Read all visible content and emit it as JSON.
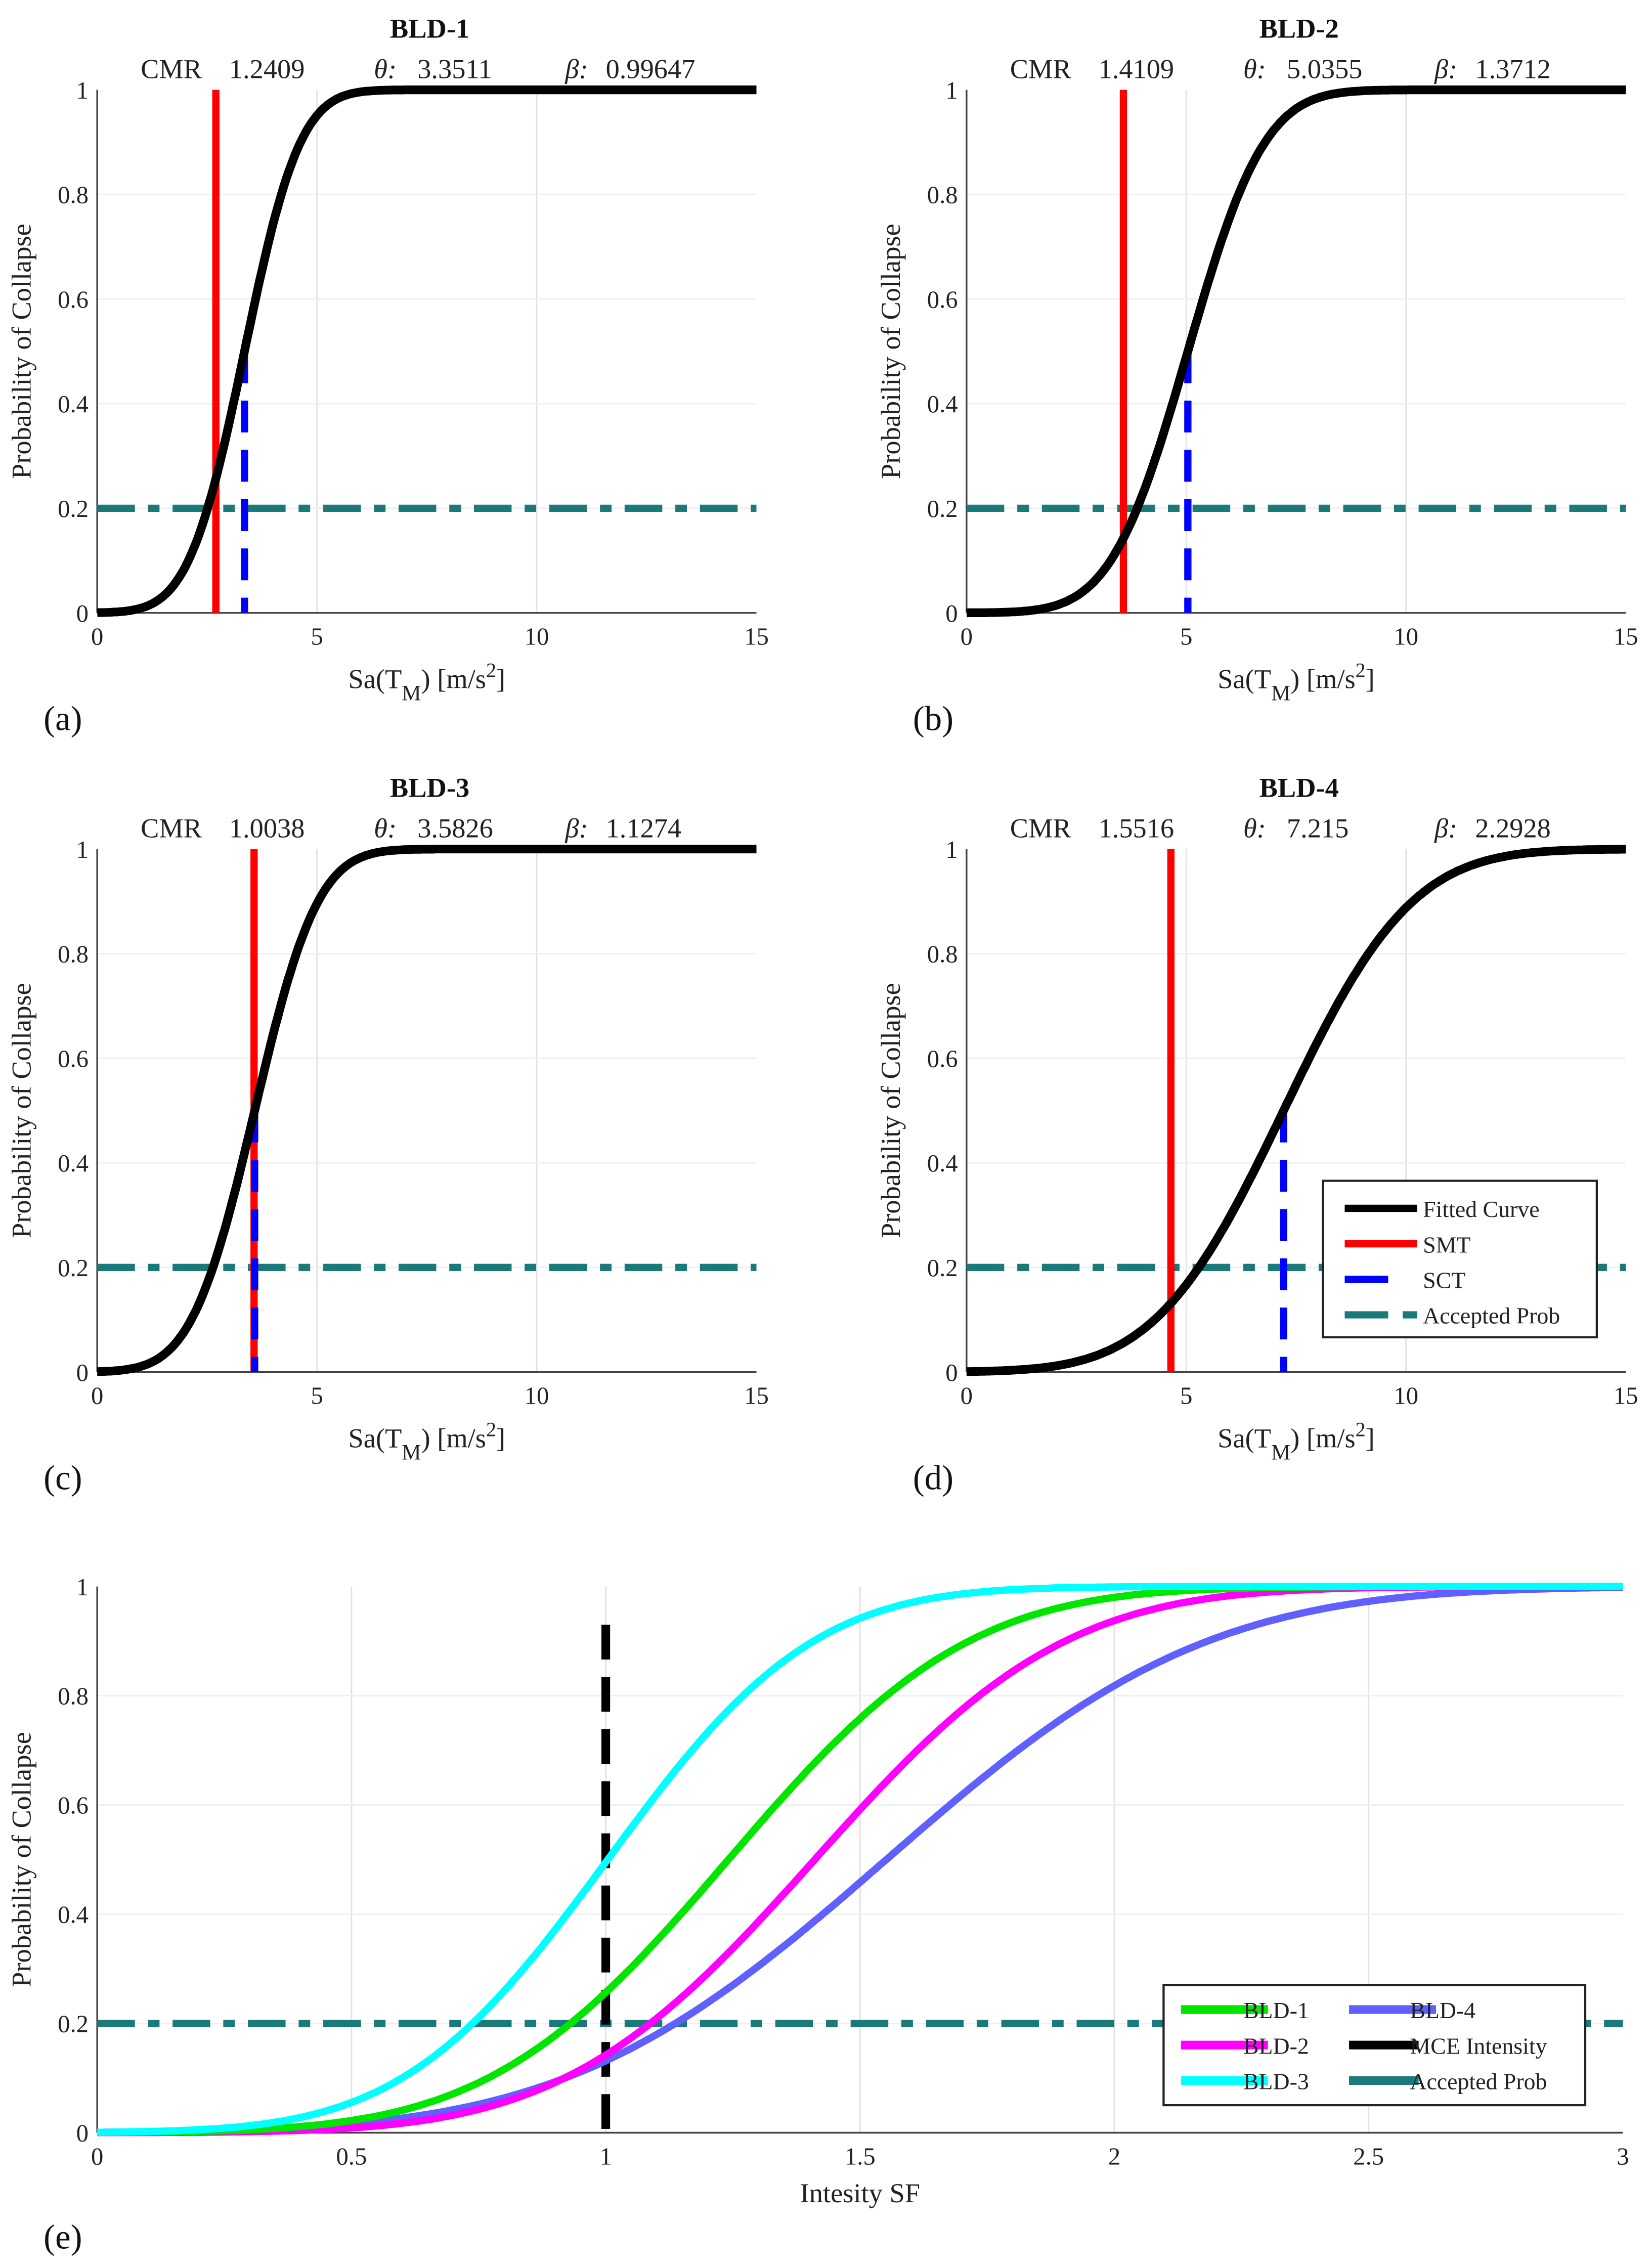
{
  "colors": {
    "fitted": "#000000",
    "smt": "#ff0000",
    "sct": "#0000ff",
    "accepted": "#1a7a7a",
    "bld1": "#00e600",
    "bld2": "#ff00ff",
    "bld3": "#00ffff",
    "bld4": "#6060ff",
    "mce": "#000000"
  },
  "chart_data": [
    {
      "type": "line",
      "panel": "(a)",
      "title": "BLD-1",
      "stats": {
        "cmr_label": "CMR",
        "cmr": "1.2409",
        "theta_label": "θ:",
        "theta": "3.3511",
        "beta_label": "β:",
        "beta": "0.99647"
      },
      "theta": 3.3511,
      "beta": 0.99647,
      "smt": 2.7,
      "sct": 3.3511,
      "accepted_prob": 0.2,
      "xlim": [
        0,
        15
      ],
      "ylim": [
        0,
        1
      ],
      "xticks": [
        "0",
        "5",
        "10",
        "15"
      ],
      "yticks": [
        "0",
        "0.2",
        "0.4",
        "0.6",
        "0.8",
        "1"
      ],
      "xlabel": "Sa(T",
      "xlabel_sub": "M",
      "xlabel_units": ")   [m/s",
      "xlabel_sup": "2",
      "xlabel_end": "]",
      "ylabel": "Probability of Collapse",
      "grid": true
    },
    {
      "type": "line",
      "panel": "(b)",
      "title": "BLD-2",
      "stats": {
        "cmr_label": "CMR",
        "cmr": "1.4109",
        "theta_label": "θ:",
        "theta": "5.0355",
        "beta_label": "β:",
        "beta": "1.3712"
      },
      "theta": 5.0355,
      "beta": 1.3712,
      "smt": 3.569,
      "sct": 5.0355,
      "accepted_prob": 0.2,
      "xlim": [
        0,
        15
      ],
      "ylim": [
        0,
        1
      ],
      "xticks": [
        "0",
        "5",
        "10",
        "15"
      ],
      "yticks": [
        "0",
        "0.2",
        "0.4",
        "0.6",
        "0.8",
        "1"
      ],
      "xlabel": "Sa(T",
      "xlabel_sub": "M",
      "xlabel_units": ")   [m/s",
      "xlabel_sup": "2",
      "xlabel_end": "]",
      "ylabel": "Probability of Collapse",
      "grid": true
    },
    {
      "type": "line",
      "panel": "(c)",
      "title": "BLD-3",
      "stats": {
        "cmr_label": "CMR",
        "cmr": "1.0038",
        "theta_label": "θ:",
        "theta": "3.5826",
        "beta_label": "β:",
        "beta": "1.1274"
      },
      "theta": 3.5826,
      "beta": 1.1274,
      "smt": 3.569,
      "sct": 3.5826,
      "accepted_prob": 0.2,
      "xlim": [
        0,
        15
      ],
      "ylim": [
        0,
        1
      ],
      "xticks": [
        "0",
        "5",
        "10",
        "15"
      ],
      "yticks": [
        "0",
        "0.2",
        "0.4",
        "0.6",
        "0.8",
        "1"
      ],
      "xlabel": "Sa(T",
      "xlabel_sub": "M",
      "xlabel_units": ")   [m/s",
      "xlabel_sup": "2",
      "xlabel_end": "]",
      "ylabel": "Probability of Collapse",
      "grid": true
    },
    {
      "type": "line",
      "panel": "(d)",
      "title": "BLD-4",
      "stats": {
        "cmr_label": "CMR",
        "cmr": "1.5516",
        "theta_label": "θ:",
        "theta": "7.215",
        "beta_label": "β:",
        "beta": "2.2928"
      },
      "theta": 7.215,
      "beta": 2.2928,
      "smt": 4.65,
      "sct": 7.215,
      "accepted_prob": 0.2,
      "xlim": [
        0,
        15
      ],
      "ylim": [
        0,
        1
      ],
      "xticks": [
        "0",
        "5",
        "10",
        "15"
      ],
      "yticks": [
        "0",
        "0.2",
        "0.4",
        "0.6",
        "0.8",
        "1"
      ],
      "xlabel": "Sa(T",
      "xlabel_sub": "M",
      "xlabel_units": ")   [m/s",
      "xlabel_sup": "2",
      "xlabel_end": "]",
      "ylabel": "Probability of Collapse",
      "grid": true,
      "legend": {
        "placement": "bottom-right",
        "entries": [
          "Fitted Curve",
          "SMT",
          "SCT",
          "Accepted Prob"
        ]
      }
    },
    {
      "type": "line",
      "panel": "(e)",
      "xlim": [
        0,
        3
      ],
      "ylim": [
        0,
        1
      ],
      "xticks": [
        "0",
        "0.5",
        "1",
        "1.5",
        "2",
        "2.5",
        "3"
      ],
      "yticks": [
        "0",
        "0.2",
        "0.4",
        "0.6",
        "0.8",
        "1"
      ],
      "xlabel": "Intesity SF",
      "ylabel": "Probability of Collapse",
      "grid": true,
      "mce_intensity": 1,
      "accepted_prob": 0.2,
      "series": [
        {
          "name": "BLD-1",
          "theta": 3.3511,
          "beta": 0.99647,
          "smt": 2.7
        },
        {
          "name": "BLD-2",
          "theta": 5.0355,
          "beta": 1.3712,
          "smt": 3.569
        },
        {
          "name": "BLD-3",
          "theta": 3.5826,
          "beta": 1.1274,
          "smt": 3.569
        },
        {
          "name": "BLD-4",
          "theta": 7.215,
          "beta": 2.2928,
          "smt": 4.65
        }
      ],
      "legend": {
        "placement": "bottom-right",
        "entries": [
          "BLD-1",
          "BLD-2",
          "BLD-3",
          "BLD-4",
          "MCE Intensity",
          "Accepted Prob"
        ]
      }
    }
  ]
}
